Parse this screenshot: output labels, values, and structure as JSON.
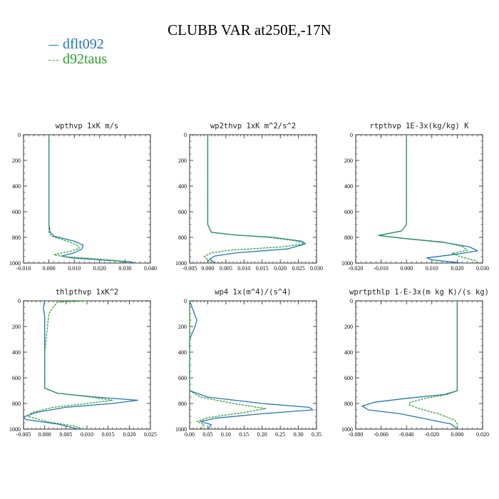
{
  "title": "CLUBB VAR at250E,-17N",
  "legend": [
    {
      "name": "dflt092",
      "color": "#1f77b4",
      "dash": "solid"
    },
    {
      "name": "d92taus",
      "color": "#2ca02c",
      "dash": "dashed"
    }
  ],
  "chart_data": [
    {
      "type": "line",
      "title": "wpthvp   1xK m/s",
      "xlim": [
        -0.01,
        0.04
      ],
      "ylim": [
        0,
        1000
      ],
      "yinverted": true,
      "xticks": [
        "-0.010",
        "0.000",
        "0.010",
        "0.020",
        "0.030",
        "0.040"
      ],
      "yticks": [
        "0",
        "200",
        "400",
        "600",
        "800",
        "1000"
      ],
      "series": [
        {
          "name": "dflt092",
          "points": [
            [
              0.0,
              0
            ],
            [
              0.0,
              700
            ],
            [
              0.0005,
              760
            ],
            [
              0.002,
              790
            ],
            [
              0.01,
              830
            ],
            [
              0.0135,
              860
            ],
            [
              0.013,
              890
            ],
            [
              0.01,
              920
            ],
            [
              0.005,
              945
            ],
            [
              0.009,
              960
            ],
            [
              0.02,
              975
            ],
            [
              0.032,
              990
            ],
            [
              0.034,
              1000
            ]
          ]
        },
        {
          "name": "d92taus",
          "points": [
            [
              0.0,
              0
            ],
            [
              0.0,
              700
            ],
            [
              0.0,
              760
            ],
            [
              0.001,
              790
            ],
            [
              0.008,
              835
            ],
            [
              0.011,
              860
            ],
            [
              0.012,
              885
            ],
            [
              0.009,
              905
            ],
            [
              0.002,
              935
            ],
            [
              0.006,
              950
            ],
            [
              0.017,
              965
            ],
            [
              0.027,
              982
            ],
            [
              0.031,
              1000
            ]
          ]
        }
      ]
    },
    {
      "type": "line",
      "title": "wp2thvp   1xK m^2/s^2",
      "xlim": [
        -0.005,
        0.03
      ],
      "ylim": [
        0,
        1000
      ],
      "yinverted": true,
      "xticks": [
        "-0.005",
        "0.000",
        "0.005",
        "0.010",
        "0.015",
        "0.020",
        "0.025",
        "0.030"
      ],
      "yticks": [
        "0",
        "200",
        "400",
        "600",
        "800",
        "1000"
      ],
      "series": [
        {
          "name": "dflt092",
          "points": [
            [
              0.0,
              0
            ],
            [
              0.0,
              700
            ],
            [
              0.001,
              760
            ],
            [
              0.007,
              780
            ],
            [
              0.018,
              800
            ],
            [
              0.026,
              830
            ],
            [
              0.027,
              850
            ],
            [
              0.022,
              890
            ],
            [
              0.008,
              920
            ],
            [
              0.002,
              945
            ],
            [
              0.0005,
              970
            ],
            [
              0.002,
              1000
            ]
          ]
        },
        {
          "name": "d92taus",
          "points": [
            [
              0.0,
              0
            ],
            [
              0.0,
              700
            ],
            [
              0.001,
              760
            ],
            [
              0.007,
              780
            ],
            [
              0.017,
              800
            ],
            [
              0.024,
              825
            ],
            [
              0.027,
              850
            ],
            [
              0.02,
              875
            ],
            [
              0.006,
              900
            ],
            [
              0.001,
              920
            ],
            [
              -0.001,
              950
            ],
            [
              0.001,
              1000
            ]
          ]
        }
      ]
    },
    {
      "type": "line",
      "title": "rtpthvp   1E-3x(kg/kg) K",
      "xlim": [
        -0.02,
        0.03
      ],
      "ylim": [
        0,
        1000
      ],
      "yinverted": true,
      "xticks": [
        "-0.020",
        "-0.010",
        "0.000",
        "0.010",
        "0.020",
        "0.030"
      ],
      "yticks": [
        "0",
        "200",
        "400",
        "600",
        "800",
        "1000"
      ],
      "series": [
        {
          "name": "dflt092",
          "points": [
            [
              0.0,
              0
            ],
            [
              0.0,
              700
            ],
            [
              -0.002,
              750
            ],
            [
              -0.011,
              785
            ],
            [
              0.0,
              810
            ],
            [
              0.015,
              840
            ],
            [
              0.025,
              875
            ],
            [
              0.028,
              905
            ],
            [
              0.02,
              930
            ],
            [
              0.008,
              960
            ],
            [
              0.01,
              975
            ],
            [
              0.022,
              1000
            ]
          ]
        },
        {
          "name": "d92taus",
          "points": [
            [
              0.0,
              0
            ],
            [
              0.0,
              700
            ],
            [
              -0.002,
              750
            ],
            [
              -0.011,
              785
            ],
            [
              0.0,
              810
            ],
            [
              0.014,
              835
            ],
            [
              0.022,
              870
            ],
            [
              0.024,
              900
            ],
            [
              0.018,
              925
            ],
            [
              0.022,
              955
            ],
            [
              0.027,
              980
            ],
            [
              0.028,
              1000
            ]
          ]
        }
      ]
    },
    {
      "type": "line",
      "title": "thlpthvp   1xK^2",
      "xlim": [
        -0.005,
        0.025
      ],
      "ylim": [
        0,
        1000
      ],
      "yinverted": true,
      "xticks": [
        "-0.005",
        "0.000",
        "0.005",
        "0.010",
        "0.015",
        "0.020",
        "0.025"
      ],
      "yticks": [
        "0",
        "200",
        "400",
        "600",
        "800",
        "1000"
      ],
      "series": [
        {
          "name": "dflt092",
          "points": [
            [
              0.0,
              0
            ],
            [
              -0.0003,
              60
            ],
            [
              0.0,
              120
            ],
            [
              0.0,
              400
            ],
            [
              0.0,
              680
            ],
            [
              0.003,
              720
            ],
            [
              0.012,
              750
            ],
            [
              0.022,
              775
            ],
            [
              0.016,
              800
            ],
            [
              0.005,
              830
            ],
            [
              -0.002,
              870
            ],
            [
              -0.005,
              905
            ],
            [
              -0.0045,
              925
            ],
            [
              0.003,
              960
            ],
            [
              0.008,
              1000
            ]
          ]
        },
        {
          "name": "d92taus",
          "points": [
            [
              0.01,
              0
            ],
            [
              0.003,
              10
            ],
            [
              0.002,
              50
            ],
            [
              0.001,
              100
            ],
            [
              0.0,
              400
            ],
            [
              0.0,
              680
            ],
            [
              0.003,
              720
            ],
            [
              0.011,
              750
            ],
            [
              0.016,
              775
            ],
            [
              0.01,
              800
            ],
            [
              0.002,
              830
            ],
            [
              -0.003,
              870
            ],
            [
              -0.004,
              900
            ],
            [
              0.001,
              945
            ],
            [
              0.007,
              975
            ],
            [
              0.009,
              1000
            ]
          ]
        }
      ]
    },
    {
      "type": "line",
      "title": "wp4   1x(m^4)/(s^4)",
      "xlim": [
        0.0,
        0.35
      ],
      "ylim": [
        0,
        1000
      ],
      "yinverted": true,
      "xticks": [
        "0.00",
        "0.05",
        "0.10",
        "0.15",
        "0.20",
        "0.25",
        "0.30",
        "0.35"
      ],
      "yticks": [
        "0",
        "200",
        "400",
        "600",
        "800",
        "1000"
      ],
      "series": [
        {
          "name": "dflt092",
          "points": [
            [
              0.0,
              0
            ],
            [
              0.02,
              150
            ],
            [
              0.015,
              200
            ],
            [
              0.0,
              300
            ],
            [
              0.0,
              700
            ],
            [
              0.05,
              750
            ],
            [
              0.2,
              800
            ],
            [
              0.33,
              830
            ],
            [
              0.34,
              850
            ],
            [
              0.2,
              880
            ],
            [
              0.07,
              915
            ],
            [
              0.03,
              940
            ],
            [
              0.06,
              965
            ],
            [
              0.05,
              1000
            ]
          ]
        },
        {
          "name": "d92taus",
          "points": [
            [
              0.0,
              0
            ],
            [
              0.0,
              700
            ],
            [
              0.03,
              750
            ],
            [
              0.12,
              800
            ],
            [
              0.21,
              840
            ],
            [
              0.15,
              870
            ],
            [
              0.05,
              910
            ],
            [
              0.02,
              940
            ],
            [
              0.04,
              965
            ],
            [
              0.03,
              1000
            ]
          ]
        }
      ]
    },
    {
      "type": "line",
      "title": "wprtpthlp   1-E-3x(m kg K)/(s kg)",
      "xlim": [
        -0.08,
        0.02
      ],
      "ylim": [
        0,
        1000
      ],
      "yinverted": true,
      "xticks": [
        "-0.080",
        "-0.060",
        "-0.040",
        "-0.020",
        "0.000",
        "0.020"
      ],
      "yticks": [
        "0",
        "200",
        "400",
        "600",
        "800",
        "1000"
      ],
      "series": [
        {
          "name": "dflt092",
          "points": [
            [
              0.0,
              0
            ],
            [
              0.0,
              700
            ],
            [
              -0.01,
              730
            ],
            [
              -0.04,
              760
            ],
            [
              -0.065,
              790
            ],
            [
              -0.075,
              820
            ],
            [
              -0.07,
              850
            ],
            [
              -0.045,
              880
            ],
            [
              -0.02,
              930
            ],
            [
              -0.005,
              960
            ],
            [
              0.0,
              1000
            ]
          ]
        },
        {
          "name": "d92taus",
          "points": [
            [
              0.0,
              0
            ],
            [
              0.0,
              700
            ],
            [
              -0.008,
              730
            ],
            [
              -0.025,
              760
            ],
            [
              -0.037,
              790
            ],
            [
              -0.038,
              810
            ],
            [
              -0.03,
              840
            ],
            [
              -0.015,
              880
            ],
            [
              -0.002,
              930
            ],
            [
              0.0,
              960
            ],
            [
              0.0,
              1000
            ]
          ]
        }
      ]
    }
  ]
}
